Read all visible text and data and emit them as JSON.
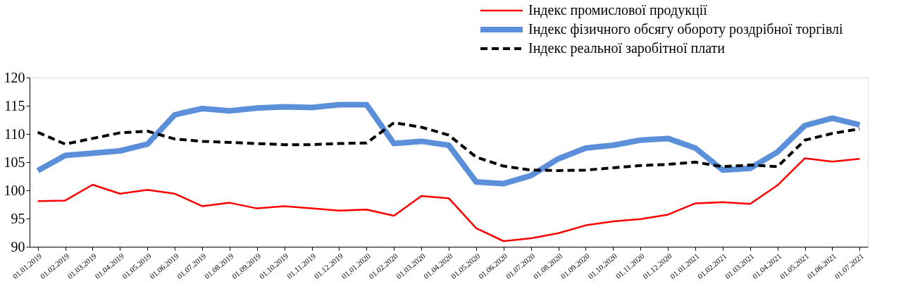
{
  "chart_data": {
    "type": "line",
    "categories": [
      "01.01.2019",
      "01.02.2019",
      "01.03.2019",
      "01.04.2019",
      "01.05.2019",
      "01.06.2019",
      "01.07.2019",
      "01.08.2019",
      "01.09.2019",
      "01.10.2019",
      "01.11.2019",
      "01.12.2019",
      "01.01.2020",
      "01.02.2020",
      "01.03.2020",
      "01.04.2020",
      "01.05.2020",
      "01.06.2020",
      "01.07.2020",
      "01.08.2020",
      "01.09.2020",
      "01.10.2020",
      "01.11.2020",
      "01.12.2020",
      "01.01.2021",
      "01.02.2021",
      "01.03.2021",
      "01.04.2021",
      "01.05.2021",
      "01.06.2021",
      "01.07.2021"
    ],
    "series": [
      {
        "name": "Індекс промислової продукції",
        "color": "#ff0000",
        "line_style": "solid",
        "values": [
          98.1,
          98.2,
          101.0,
          99.4,
          100.1,
          99.4,
          97.2,
          97.8,
          96.8,
          97.2,
          96.8,
          96.4,
          96.6,
          95.5,
          99.0,
          98.6,
          93.3,
          91.0,
          91.5,
          92.4,
          93.8,
          94.5,
          94.9,
          95.7,
          97.7,
          97.9,
          97.6,
          100.9,
          105.7,
          105.1,
          105.6
        ]
      },
      {
        "name": "Індекс фізичного обсягу обороту роздрібної торгівлі",
        "color": "#5b8fd9",
        "line_style": "solid",
        "values": [
          103.5,
          106.2,
          106.6,
          107.0,
          108.2,
          113.4,
          114.5,
          114.1,
          114.6,
          114.8,
          114.7,
          115.2,
          115.2,
          108.3,
          108.7,
          108.0,
          101.5,
          101.2,
          102.6,
          105.6,
          107.5,
          108.0,
          108.9,
          109.2,
          107.5,
          103.6,
          103.9,
          106.8,
          111.5,
          112.8,
          111.6
        ]
      },
      {
        "name": "Індекс реальної заробітної плати",
        "color": "#000000",
        "line_style": "dashed",
        "values": [
          110.3,
          108.2,
          109.2,
          110.2,
          110.5,
          109.1,
          108.7,
          108.5,
          108.3,
          108.1,
          108.1,
          108.3,
          108.4,
          112.0,
          111.2,
          109.8,
          105.9,
          104.3,
          103.6,
          103.5,
          103.6,
          104.0,
          104.4,
          104.6,
          105.0,
          104.2,
          104.5,
          104.2,
          108.9,
          110.1,
          110.9
        ]
      }
    ],
    "ylim": [
      90,
      120
    ],
    "yticks": [
      90,
      95,
      100,
      105,
      110,
      115,
      120
    ],
    "grid": false,
    "legend": "top right",
    "marker": "none"
  }
}
